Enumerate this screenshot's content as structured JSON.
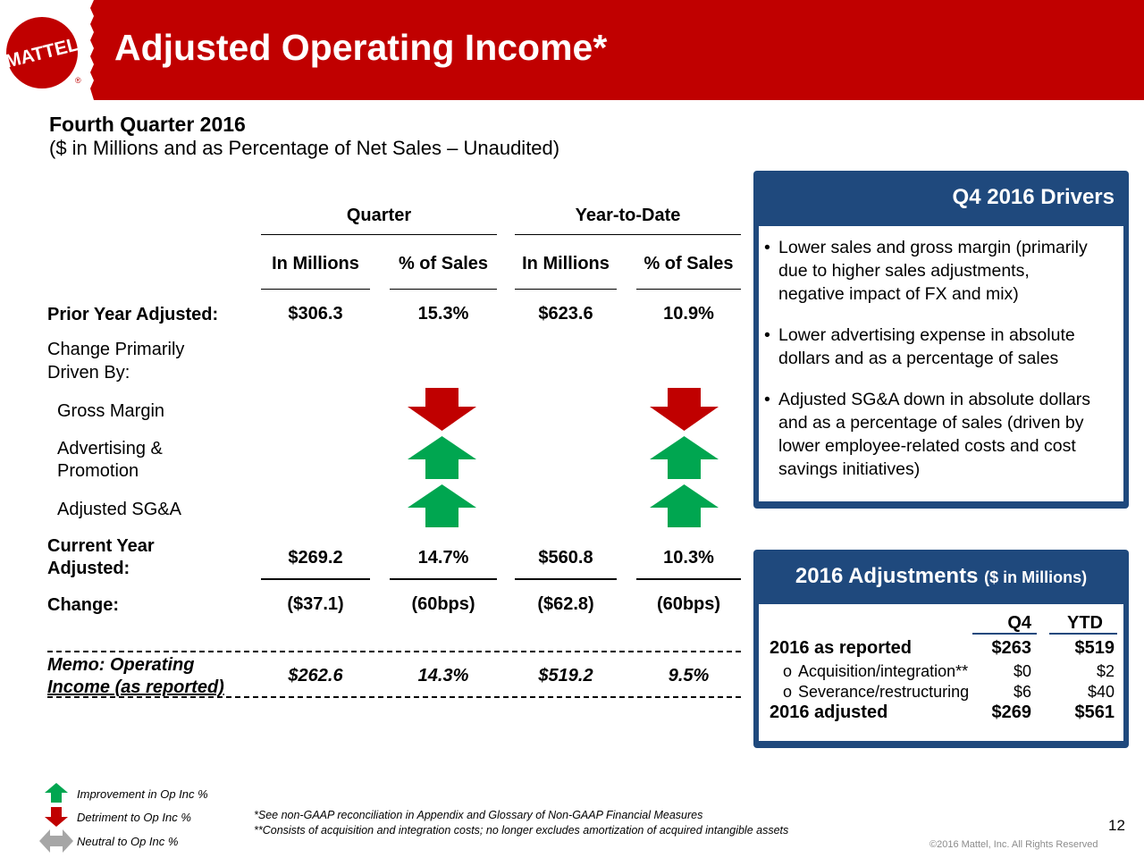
{
  "header": {
    "logo_text": "MATTEL",
    "logo_mark": "®",
    "title": "Adjusted Operating Income*"
  },
  "subtitle": {
    "line1": "Fourth Quarter 2016",
    "line2": "($ in Millions and as Percentage of Net Sales – Unaudited)"
  },
  "table": {
    "group_headers": [
      "Quarter",
      "Year-to-Date"
    ],
    "column_headers": [
      "In Millions",
      "% of Sales",
      "In Millions",
      "% of Sales"
    ],
    "prior_year": {
      "label": "Prior Year Adjusted:",
      "values": [
        "$306.3",
        "15.3%",
        "$623.6",
        "10.9%"
      ]
    },
    "change_driven": {
      "line1": "Change Primarily",
      "line2": "Driven By:"
    },
    "drivers": [
      {
        "label": "Gross Margin",
        "quarter_arrow": "down",
        "ytd_arrow": "down"
      },
      {
        "label_line1": "Advertising &",
        "label_line2": "Promotion",
        "quarter_arrow": "up",
        "ytd_arrow": "up"
      },
      {
        "label": "Adjusted SG&A",
        "quarter_arrow": "up",
        "ytd_arrow": "up"
      }
    ],
    "current_year": {
      "label_line1": "Current Year",
      "label_line2": "Adjusted:",
      "values": [
        "$269.2",
        "14.7%",
        "$560.8",
        "10.3%"
      ]
    },
    "change": {
      "label": "Change:",
      "values": [
        "($37.1)",
        "(60bps)",
        "($62.8)",
        "(60bps)"
      ]
    },
    "memo": {
      "label_line1": "Memo: Operating",
      "label_line2": "Income (as reported)",
      "values": [
        "$262.6",
        "14.3%",
        "$519.2",
        "9.5%"
      ]
    }
  },
  "drivers_box": {
    "title": "Q4 2016 Drivers",
    "bullets": [
      [
        "Lower sales and gross margin (primarily",
        "due to higher sales adjustments,",
        "negative impact of FX and mix)"
      ],
      [
        "Lower advertising expense in absolute",
        "dollars and as a percentage of sales"
      ],
      [
        "Adjusted SG&A down in absolute dollars",
        "and as a percentage of sales (driven by",
        "lower employee-related costs and cost",
        "savings initiatives)"
      ]
    ],
    "bullet_char": "•"
  },
  "adjustments_box": {
    "title": "2016 Adjustments",
    "title_suffix": "($ in Millions)",
    "columns": [
      "Q4",
      "YTD"
    ],
    "rows": [
      {
        "label": "2016 as reported",
        "q4": "$263",
        "ytd": "$519",
        "style": "bold"
      },
      {
        "label": "Acquisition/integration**",
        "q4": "$0",
        "ytd": "$2",
        "style": "sub"
      },
      {
        "label": "Severance/restructuring",
        "q4": "$6",
        "ytd": "$40",
        "style": "sub"
      },
      {
        "label": "2016 adjusted",
        "q4": "$269",
        "ytd": "$561",
        "style": "bold"
      }
    ],
    "sub_bullet": "o"
  },
  "legend": {
    "improvement": "Improvement in Op Inc %",
    "detriment": "Detriment to Op Inc %",
    "neutral": "Neutral to Op Inc %"
  },
  "footnotes": {
    "line1": "*See non-GAAP reconciliation in Appendix and Glossary of Non-GAAP Financial Measures",
    "line2": "**Consists of acquisition and integration costs; no longer excludes amortization of acquired intangible assets"
  },
  "page_number": "12",
  "copyright": "©2016 Mattel, Inc.  All Rights Reserved",
  "colors": {
    "brand_red": "#c00000",
    "navy": "#1f497d",
    "arrow_up": "#00a650",
    "arrow_down": "#c00000",
    "arrow_neutral": "#a6a6a6"
  }
}
